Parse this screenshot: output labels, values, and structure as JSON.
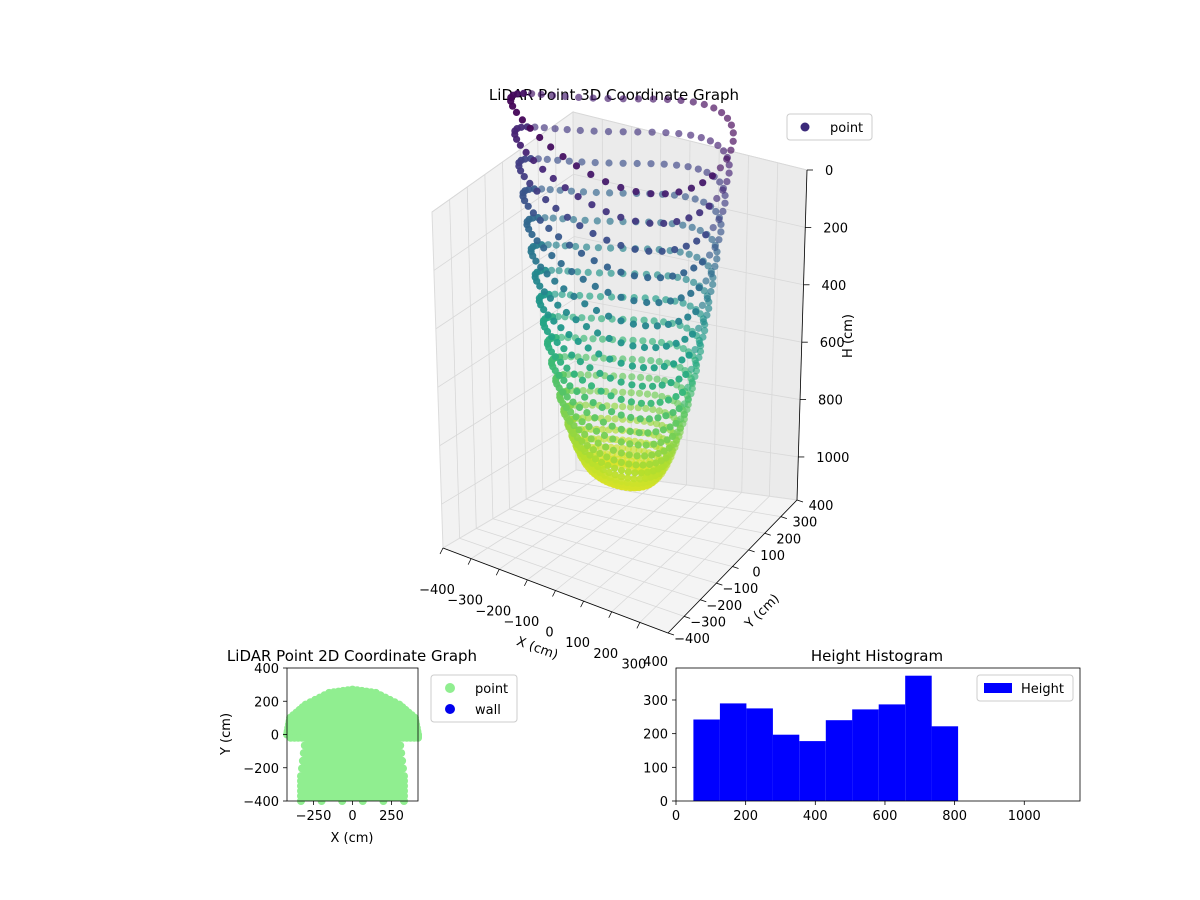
{
  "chart_data": [
    {
      "type": "scatter3d",
      "title": "LiDAR Point 3D Coordinate Graph",
      "xlabel": "X (cm)",
      "ylabel": "Y (cm)",
      "zlabel": "H (cm)",
      "x_ticks": [
        "−400",
        "−300",
        "−200",
        "−100",
        "0",
        "100",
        "200",
        "300"
      ],
      "y_ticks": [
        "−400",
        "−300",
        "−200",
        "−100",
        "0",
        "100",
        "200",
        "300",
        "400"
      ],
      "z_ticks": [
        "0",
        "200",
        "400",
        "600",
        "800",
        "1000"
      ],
      "xlim": [
        -400,
        400
      ],
      "ylim": [
        -400,
        400
      ],
      "zlim": [
        1150,
        0
      ],
      "legend": [
        {
          "name": "point",
          "color": "#3b2a7a"
        }
      ],
      "legend_position": "top-right",
      "colormap": "viridis",
      "grid": true
    },
    {
      "type": "scatter",
      "title": "LiDAR Point 2D Coordinate Graph",
      "xlabel": "X (cm)",
      "ylabel": "Y (cm)",
      "x_ticks": [
        "−250",
        "0",
        "250"
      ],
      "y_ticks": [
        "400",
        "200",
        "0",
        "−200",
        "−400"
      ],
      "xlim": [
        -420,
        420
      ],
      "ylim": [
        -400,
        400
      ],
      "series": [
        {
          "name": "point",
          "color": "#90ee90"
        },
        {
          "name": "wall",
          "color": "#0000ee"
        }
      ],
      "legend_position": "outside-right"
    },
    {
      "type": "bar",
      "title": "Height Histogram",
      "x_ticks": [
        "0",
        "200",
        "400",
        "600",
        "800",
        "1000"
      ],
      "y_ticks": [
        "0",
        "100",
        "200",
        "300",
        "400"
      ],
      "xlim": [
        0,
        1160
      ],
      "ylim": [
        0,
        395
      ],
      "bins": [
        {
          "x0": 50,
          "x1": 126,
          "value": 242
        },
        {
          "x0": 126,
          "x1": 202,
          "value": 290
        },
        {
          "x0": 202,
          "x1": 278,
          "value": 275
        },
        {
          "x0": 278,
          "x1": 354,
          "value": 197
        },
        {
          "x0": 354,
          "x1": 430,
          "value": 178
        },
        {
          "x0": 430,
          "x1": 506,
          "value": 240
        },
        {
          "x0": 506,
          "x1": 582,
          "value": 272
        },
        {
          "x0": 582,
          "x1": 658,
          "value": 287
        },
        {
          "x0": 658,
          "x1": 734,
          "value": 372
        },
        {
          "x0": 734,
          "x1": 810,
          "value": 222
        }
      ],
      "legend": [
        {
          "name": "Height",
          "color": "#0000ff"
        }
      ],
      "legend_position": "top-right",
      "color": "#0000ff"
    }
  ]
}
